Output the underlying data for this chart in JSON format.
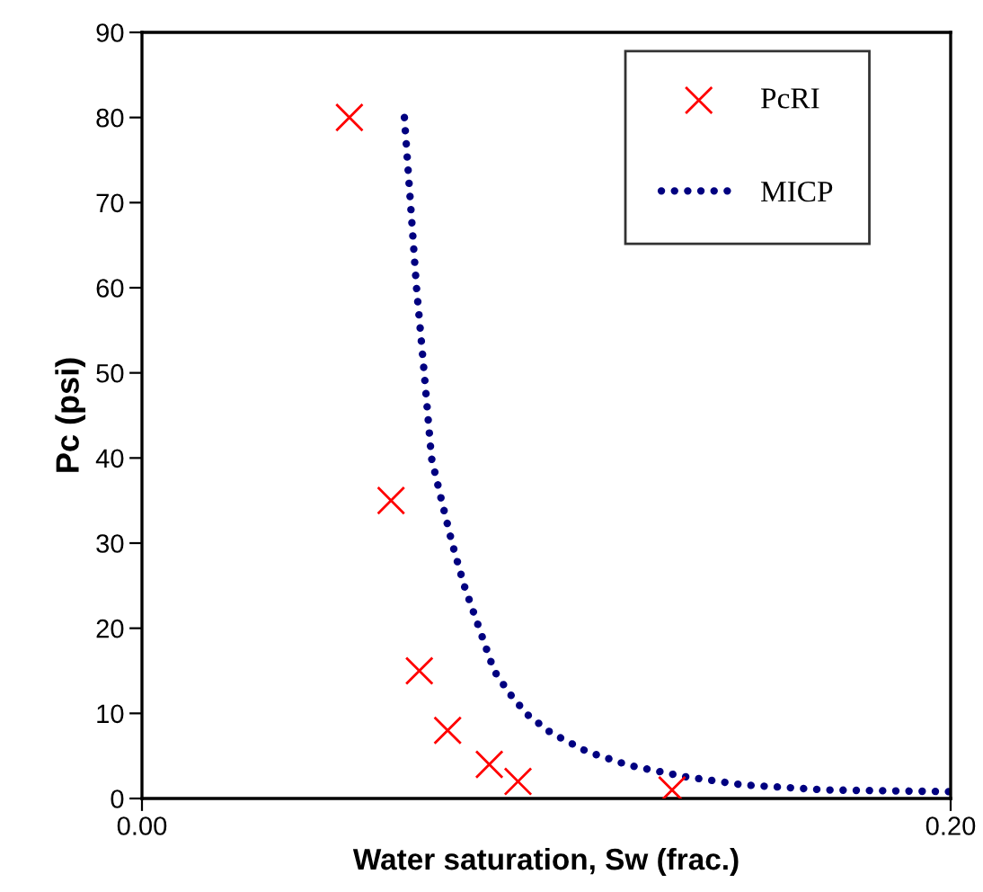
{
  "chart_data": {
    "type": "scatter",
    "xlabel": "Water saturation, Sw (frac.)",
    "ylabel": "Pc (psi)",
    "xlim": [
      0,
      0.2
    ],
    "xticks": [
      {
        "value": 0,
        "label": "0.00"
      },
      {
        "value": 0.2,
        "label": "0.20"
      }
    ],
    "ylim": [
      0,
      90
    ],
    "yticks": [
      0,
      10,
      20,
      30,
      40,
      50,
      60,
      70,
      80,
      90
    ],
    "grid": false,
    "legend": "top right",
    "series": [
      {
        "name": "PcRI",
        "marker": "cross",
        "color": "#ff0000",
        "x": [
          0.0513,
          0.0616,
          0.0686,
          0.0756,
          0.0859,
          0.093,
          0.1311
        ],
        "values": [
          80,
          35,
          15,
          8,
          4,
          2,
          1
        ]
      },
      {
        "name": "MICP",
        "type": "line",
        "marker": "none",
        "line_style": "dotted",
        "color": "#000080",
        "x": [
          0.0649,
          0.0664,
          0.0679,
          0.0698,
          0.0716,
          0.0741,
          0.0767,
          0.0797,
          0.0834,
          0.0871,
          0.0908,
          0.0952,
          0.1012,
          0.1101,
          0.1204,
          0.1338,
          0.1486,
          0.1693,
          0.2
        ],
        "values": [
          80,
          70,
          60,
          50,
          40,
          35,
          30,
          25,
          20,
          15,
          12.4,
          9.9,
          7.7,
          5.5,
          3.9,
          2.6,
          1.6,
          1.0,
          0.8
        ]
      }
    ]
  }
}
